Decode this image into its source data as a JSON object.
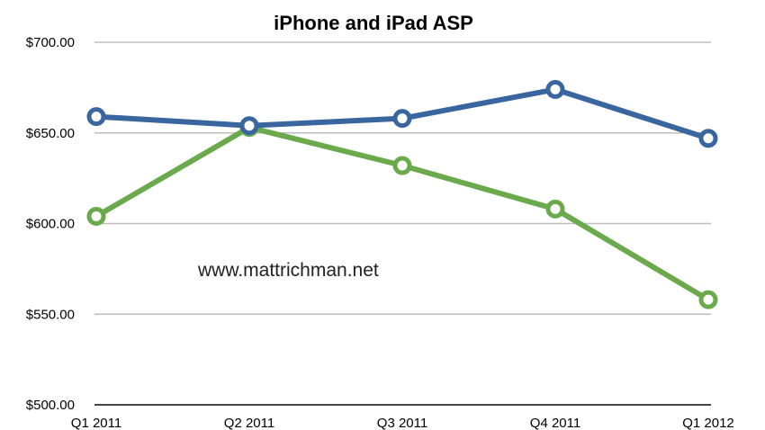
{
  "chart_data": {
    "type": "line",
    "title": "iPhone and iPad ASP",
    "xlabel": "",
    "ylabel": "",
    "categories": [
      "Q1 2011",
      "Q2 2011",
      "Q3 2011",
      "Q4 2011",
      "Q1 2012"
    ],
    "y_ticks": [
      "$500.00",
      "$550.00",
      "$600.00",
      "$650.00",
      "$700.00"
    ],
    "ylim": [
      500,
      700
    ],
    "grid": true,
    "legend": "none",
    "series": [
      {
        "color": "#3a66a0",
        "values": [
          659,
          654,
          658,
          674,
          647
        ]
      },
      {
        "color": "#6aaa4c",
        "values": [
          604,
          653,
          632,
          608,
          558
        ]
      }
    ],
    "annotation": "www.mattrichman.net"
  }
}
